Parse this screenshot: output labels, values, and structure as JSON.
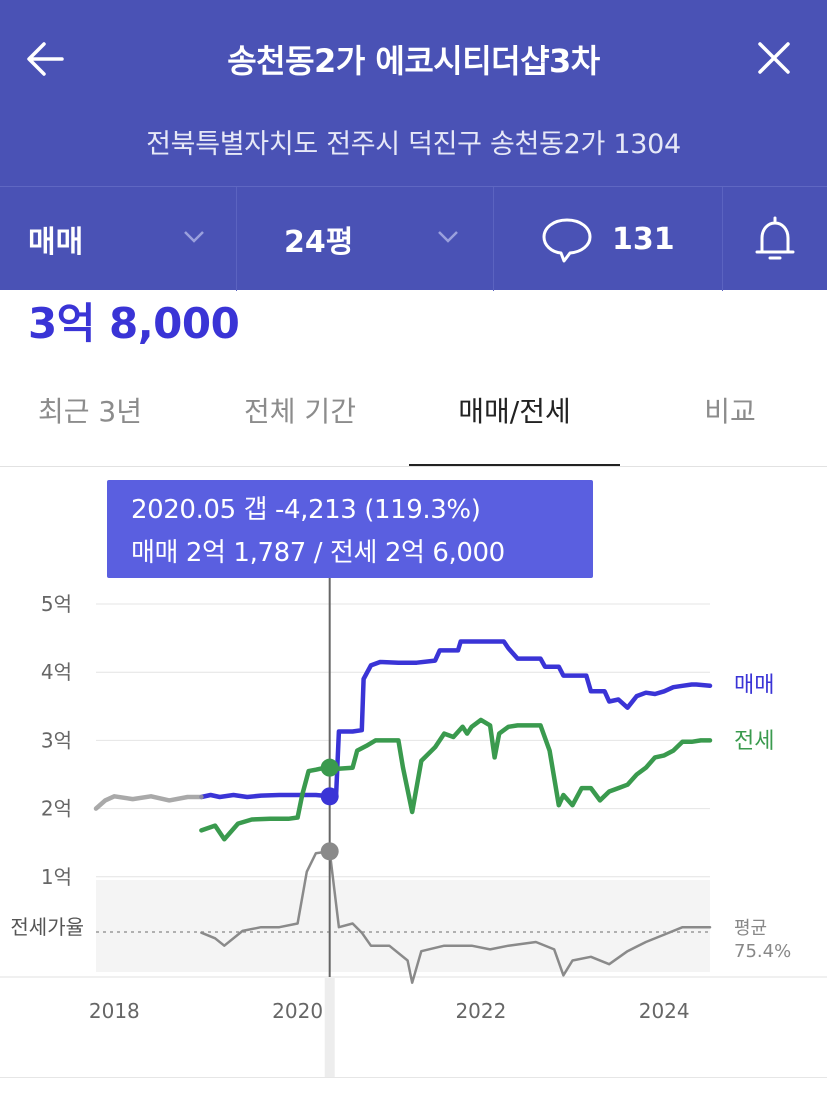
{
  "header": {
    "title": "송천동2가 에코시티더샵3차",
    "address": "전북특별자치도 전주시 덕진구 송천동2가 1304",
    "back_icon": "arrow-left-icon",
    "close_icon": "close-icon"
  },
  "controls": {
    "deal_type": "매매",
    "size": "24평",
    "comment_count": "131",
    "icons": [
      "chevron-down-icon",
      "comment-icon",
      "bell-icon"
    ]
  },
  "price": "3억 8,000",
  "tabs": [
    {
      "label": "최근 3년",
      "active": false
    },
    {
      "label": "전체 기간",
      "active": false
    },
    {
      "label": "매매/전세",
      "active": true
    },
    {
      "label": "비교",
      "active": false
    }
  ],
  "tooltip": {
    "line1": "2020.05  갭 -4,213 (119.3%)",
    "line2": "매매 2억 1,787 / 전세 2억 6,000"
  },
  "colors": {
    "header_bg": "#4a52b5",
    "sale": "#3a34d6",
    "jeonse": "#3a9a4e",
    "ratio": "#8a8a8a",
    "tooltip_bg": "#5a5fe0"
  },
  "chart_data": {
    "type": "line",
    "ylim": [
      0,
      5
    ],
    "y_ticks": [
      "1억",
      "2억",
      "3억",
      "4억",
      "5억"
    ],
    "x_ticks": [
      "2018",
      "2020",
      "2022",
      "2024"
    ],
    "ratio_label": "전세가율",
    "average_label": "평균",
    "average_value": "75.4%",
    "selected_date": 2020.35,
    "series": [
      {
        "name": "매매",
        "color": "#3a34d6",
        "points": [
          [
            2018.95,
            2.17
          ],
          [
            2019.05,
            2.2
          ],
          [
            2019.15,
            2.17
          ],
          [
            2019.3,
            2.2
          ],
          [
            2019.45,
            2.17
          ],
          [
            2019.6,
            2.19
          ],
          [
            2019.8,
            2.2
          ],
          [
            2020.0,
            2.2
          ],
          [
            2020.2,
            2.2
          ],
          [
            2020.35,
            2.18
          ],
          [
            2020.42,
            2.2
          ],
          [
            2020.45,
            3.13
          ],
          [
            2020.6,
            3.13
          ],
          [
            2020.7,
            3.15
          ],
          [
            2020.72,
            3.9
          ],
          [
            2020.8,
            4.1
          ],
          [
            2020.9,
            4.15
          ],
          [
            2021.1,
            4.14
          ],
          [
            2021.3,
            4.14
          ],
          [
            2021.5,
            4.17
          ],
          [
            2021.55,
            4.32
          ],
          [
            2021.75,
            4.32
          ],
          [
            2021.78,
            4.45
          ],
          [
            2022.25,
            4.45
          ],
          [
            2022.3,
            4.35
          ],
          [
            2022.4,
            4.2
          ],
          [
            2022.5,
            4.2
          ],
          [
            2022.65,
            4.2
          ],
          [
            2022.7,
            4.08
          ],
          [
            2022.85,
            4.08
          ],
          [
            2022.9,
            3.95
          ],
          [
            2023.15,
            3.95
          ],
          [
            2023.2,
            3.72
          ],
          [
            2023.35,
            3.72
          ],
          [
            2023.4,
            3.57
          ],
          [
            2023.5,
            3.6
          ],
          [
            2023.6,
            3.48
          ],
          [
            2023.7,
            3.65
          ],
          [
            2023.8,
            3.7
          ],
          [
            2023.9,
            3.68
          ],
          [
            2024.0,
            3.72
          ],
          [
            2024.1,
            3.78
          ],
          [
            2024.2,
            3.8
          ],
          [
            2024.3,
            3.82
          ],
          [
            2024.35,
            3.82
          ],
          [
            2024.5,
            3.8
          ]
        ]
      },
      {
        "name": "전세",
        "color": "#3a9a4e",
        "points": [
          [
            2018.95,
            1.68
          ],
          [
            2019.1,
            1.75
          ],
          [
            2019.2,
            1.55
          ],
          [
            2019.35,
            1.78
          ],
          [
            2019.5,
            1.84
          ],
          [
            2019.7,
            1.85
          ],
          [
            2019.9,
            1.85
          ],
          [
            2020.0,
            1.87
          ],
          [
            2020.05,
            2.2
          ],
          [
            2020.12,
            2.55
          ],
          [
            2020.2,
            2.57
          ],
          [
            2020.3,
            2.6
          ],
          [
            2020.35,
            2.6
          ],
          [
            2020.4,
            2.58
          ],
          [
            2020.6,
            2.6
          ],
          [
            2020.65,
            2.85
          ],
          [
            2020.75,
            2.92
          ],
          [
            2020.85,
            3.0
          ],
          [
            2021.0,
            3.0
          ],
          [
            2021.1,
            3.0
          ],
          [
            2021.15,
            2.6
          ],
          [
            2021.25,
            1.95
          ],
          [
            2021.35,
            2.7
          ],
          [
            2021.5,
            2.9
          ],
          [
            2021.6,
            3.1
          ],
          [
            2021.7,
            3.05
          ],
          [
            2021.8,
            3.2
          ],
          [
            2021.85,
            3.1
          ],
          [
            2021.9,
            3.2
          ],
          [
            2022.0,
            3.3
          ],
          [
            2022.1,
            3.22
          ],
          [
            2022.15,
            2.75
          ],
          [
            2022.2,
            3.1
          ],
          [
            2022.3,
            3.2
          ],
          [
            2022.4,
            3.22
          ],
          [
            2022.55,
            3.22
          ],
          [
            2022.65,
            3.22
          ],
          [
            2022.75,
            2.85
          ],
          [
            2022.85,
            2.05
          ],
          [
            2022.9,
            2.2
          ],
          [
            2023.0,
            2.05
          ],
          [
            2023.1,
            2.3
          ],
          [
            2023.2,
            2.3
          ],
          [
            2023.3,
            2.12
          ],
          [
            2023.4,
            2.25
          ],
          [
            2023.5,
            2.3
          ],
          [
            2023.6,
            2.35
          ],
          [
            2023.7,
            2.5
          ],
          [
            2023.8,
            2.6
          ],
          [
            2023.9,
            2.75
          ],
          [
            2024.0,
            2.78
          ],
          [
            2024.1,
            2.85
          ],
          [
            2024.2,
            2.98
          ],
          [
            2024.3,
            2.98
          ],
          [
            2024.4,
            3.0
          ],
          [
            2024.5,
            3.0
          ]
        ]
      },
      {
        "name": "전세가율",
        "color": "#8a8a8a",
        "points": [
          [
            2018.95,
            0.75
          ],
          [
            2019.1,
            0.72
          ],
          [
            2019.2,
            0.68
          ],
          [
            2019.4,
            0.76
          ],
          [
            2019.6,
            0.78
          ],
          [
            2019.8,
            0.78
          ],
          [
            2020.0,
            0.8
          ],
          [
            2020.1,
            1.08
          ],
          [
            2020.2,
            1.18
          ],
          [
            2020.35,
            1.19
          ],
          [
            2020.45,
            0.78
          ],
          [
            2020.6,
            0.8
          ],
          [
            2020.7,
            0.75
          ],
          [
            2020.8,
            0.68
          ],
          [
            2021.0,
            0.68
          ],
          [
            2021.2,
            0.6
          ],
          [
            2021.25,
            0.48
          ],
          [
            2021.35,
            0.65
          ],
          [
            2021.6,
            0.68
          ],
          [
            2021.9,
            0.68
          ],
          [
            2022.1,
            0.66
          ],
          [
            2022.3,
            0.68
          ],
          [
            2022.6,
            0.7
          ],
          [
            2022.8,
            0.66
          ],
          [
            2022.9,
            0.52
          ],
          [
            2023.0,
            0.6
          ],
          [
            2023.2,
            0.62
          ],
          [
            2023.4,
            0.58
          ],
          [
            2023.6,
            0.65
          ],
          [
            2023.8,
            0.7
          ],
          [
            2024.0,
            0.74
          ],
          [
            2024.2,
            0.78
          ],
          [
            2024.4,
            0.78
          ],
          [
            2024.5,
            0.78
          ]
        ]
      },
      {
        "name": "",
        "color": "#9a9a9a",
        "points": [
          [
            2017.8,
            2.0
          ],
          [
            2017.9,
            2.12
          ],
          [
            2018.0,
            2.18
          ],
          [
            2018.2,
            2.14
          ],
          [
            2018.4,
            2.18
          ],
          [
            2018.6,
            2.12
          ],
          [
            2018.8,
            2.17
          ],
          [
            2018.95,
            2.17
          ]
        ]
      }
    ]
  }
}
